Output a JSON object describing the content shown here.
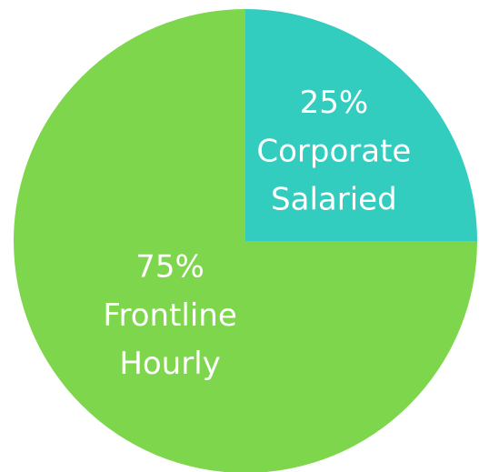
{
  "chart_data": {
    "type": "pie",
    "categories": [
      "Corporate Salaried",
      "Frontline Hourly"
    ],
    "values": [
      25,
      75
    ],
    "value_labels": [
      "25%",
      "75%"
    ],
    "colors": [
      "#33cdc0",
      "#7ed64c"
    ]
  }
}
